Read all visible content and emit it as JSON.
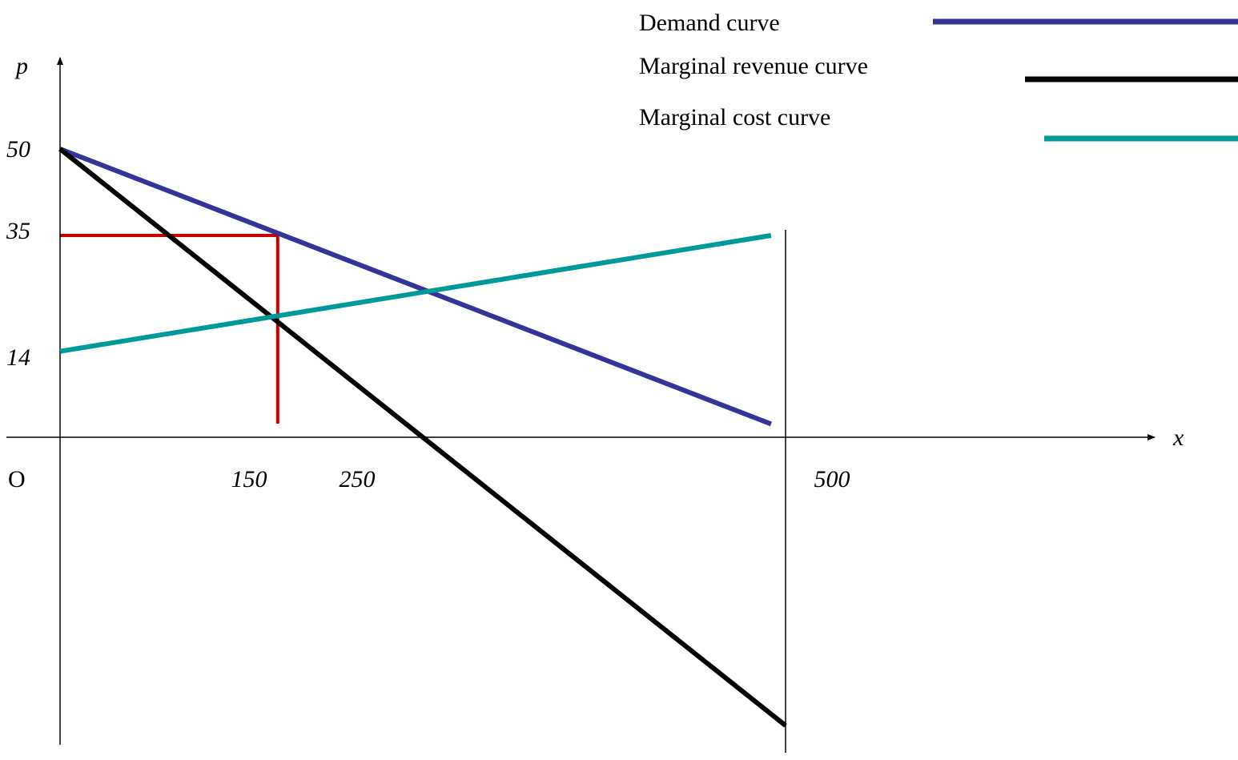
{
  "chart_data": {
    "type": "line",
    "xlabel": "x",
    "ylabel": "p",
    "origin_label": "O",
    "x_ticks": [
      {
        "value": 150,
        "label": "150"
      },
      {
        "value": 250,
        "label": "250"
      },
      {
        "value": 500,
        "label": "500"
      }
    ],
    "y_ticks": [
      {
        "value": 50,
        "label": "50"
      },
      {
        "value": 35,
        "label": "35"
      },
      {
        "value": 14,
        "label": "14"
      }
    ],
    "series": [
      {
        "key": "demand",
        "name": "Demand curve",
        "color": "#333399",
        "points": [
          [
            0,
            50
          ],
          [
            490,
            2.3
          ]
        ]
      },
      {
        "key": "mr",
        "name": "Marginal revenue curve",
        "color": "#000000",
        "points": [
          [
            0,
            50
          ],
          [
            500,
            -50
          ]
        ]
      },
      {
        "key": "mc",
        "name": "Marginal cost curve",
        "color": "#009999",
        "points": [
          [
            0,
            14.9
          ],
          [
            490,
            35
          ]
        ]
      }
    ],
    "guides": {
      "color": "#cc0000",
      "optimum": {
        "x": 150,
        "p": 35
      },
      "vertical_line_x": 500
    },
    "legend_position": "top-right",
    "grid": false
  }
}
